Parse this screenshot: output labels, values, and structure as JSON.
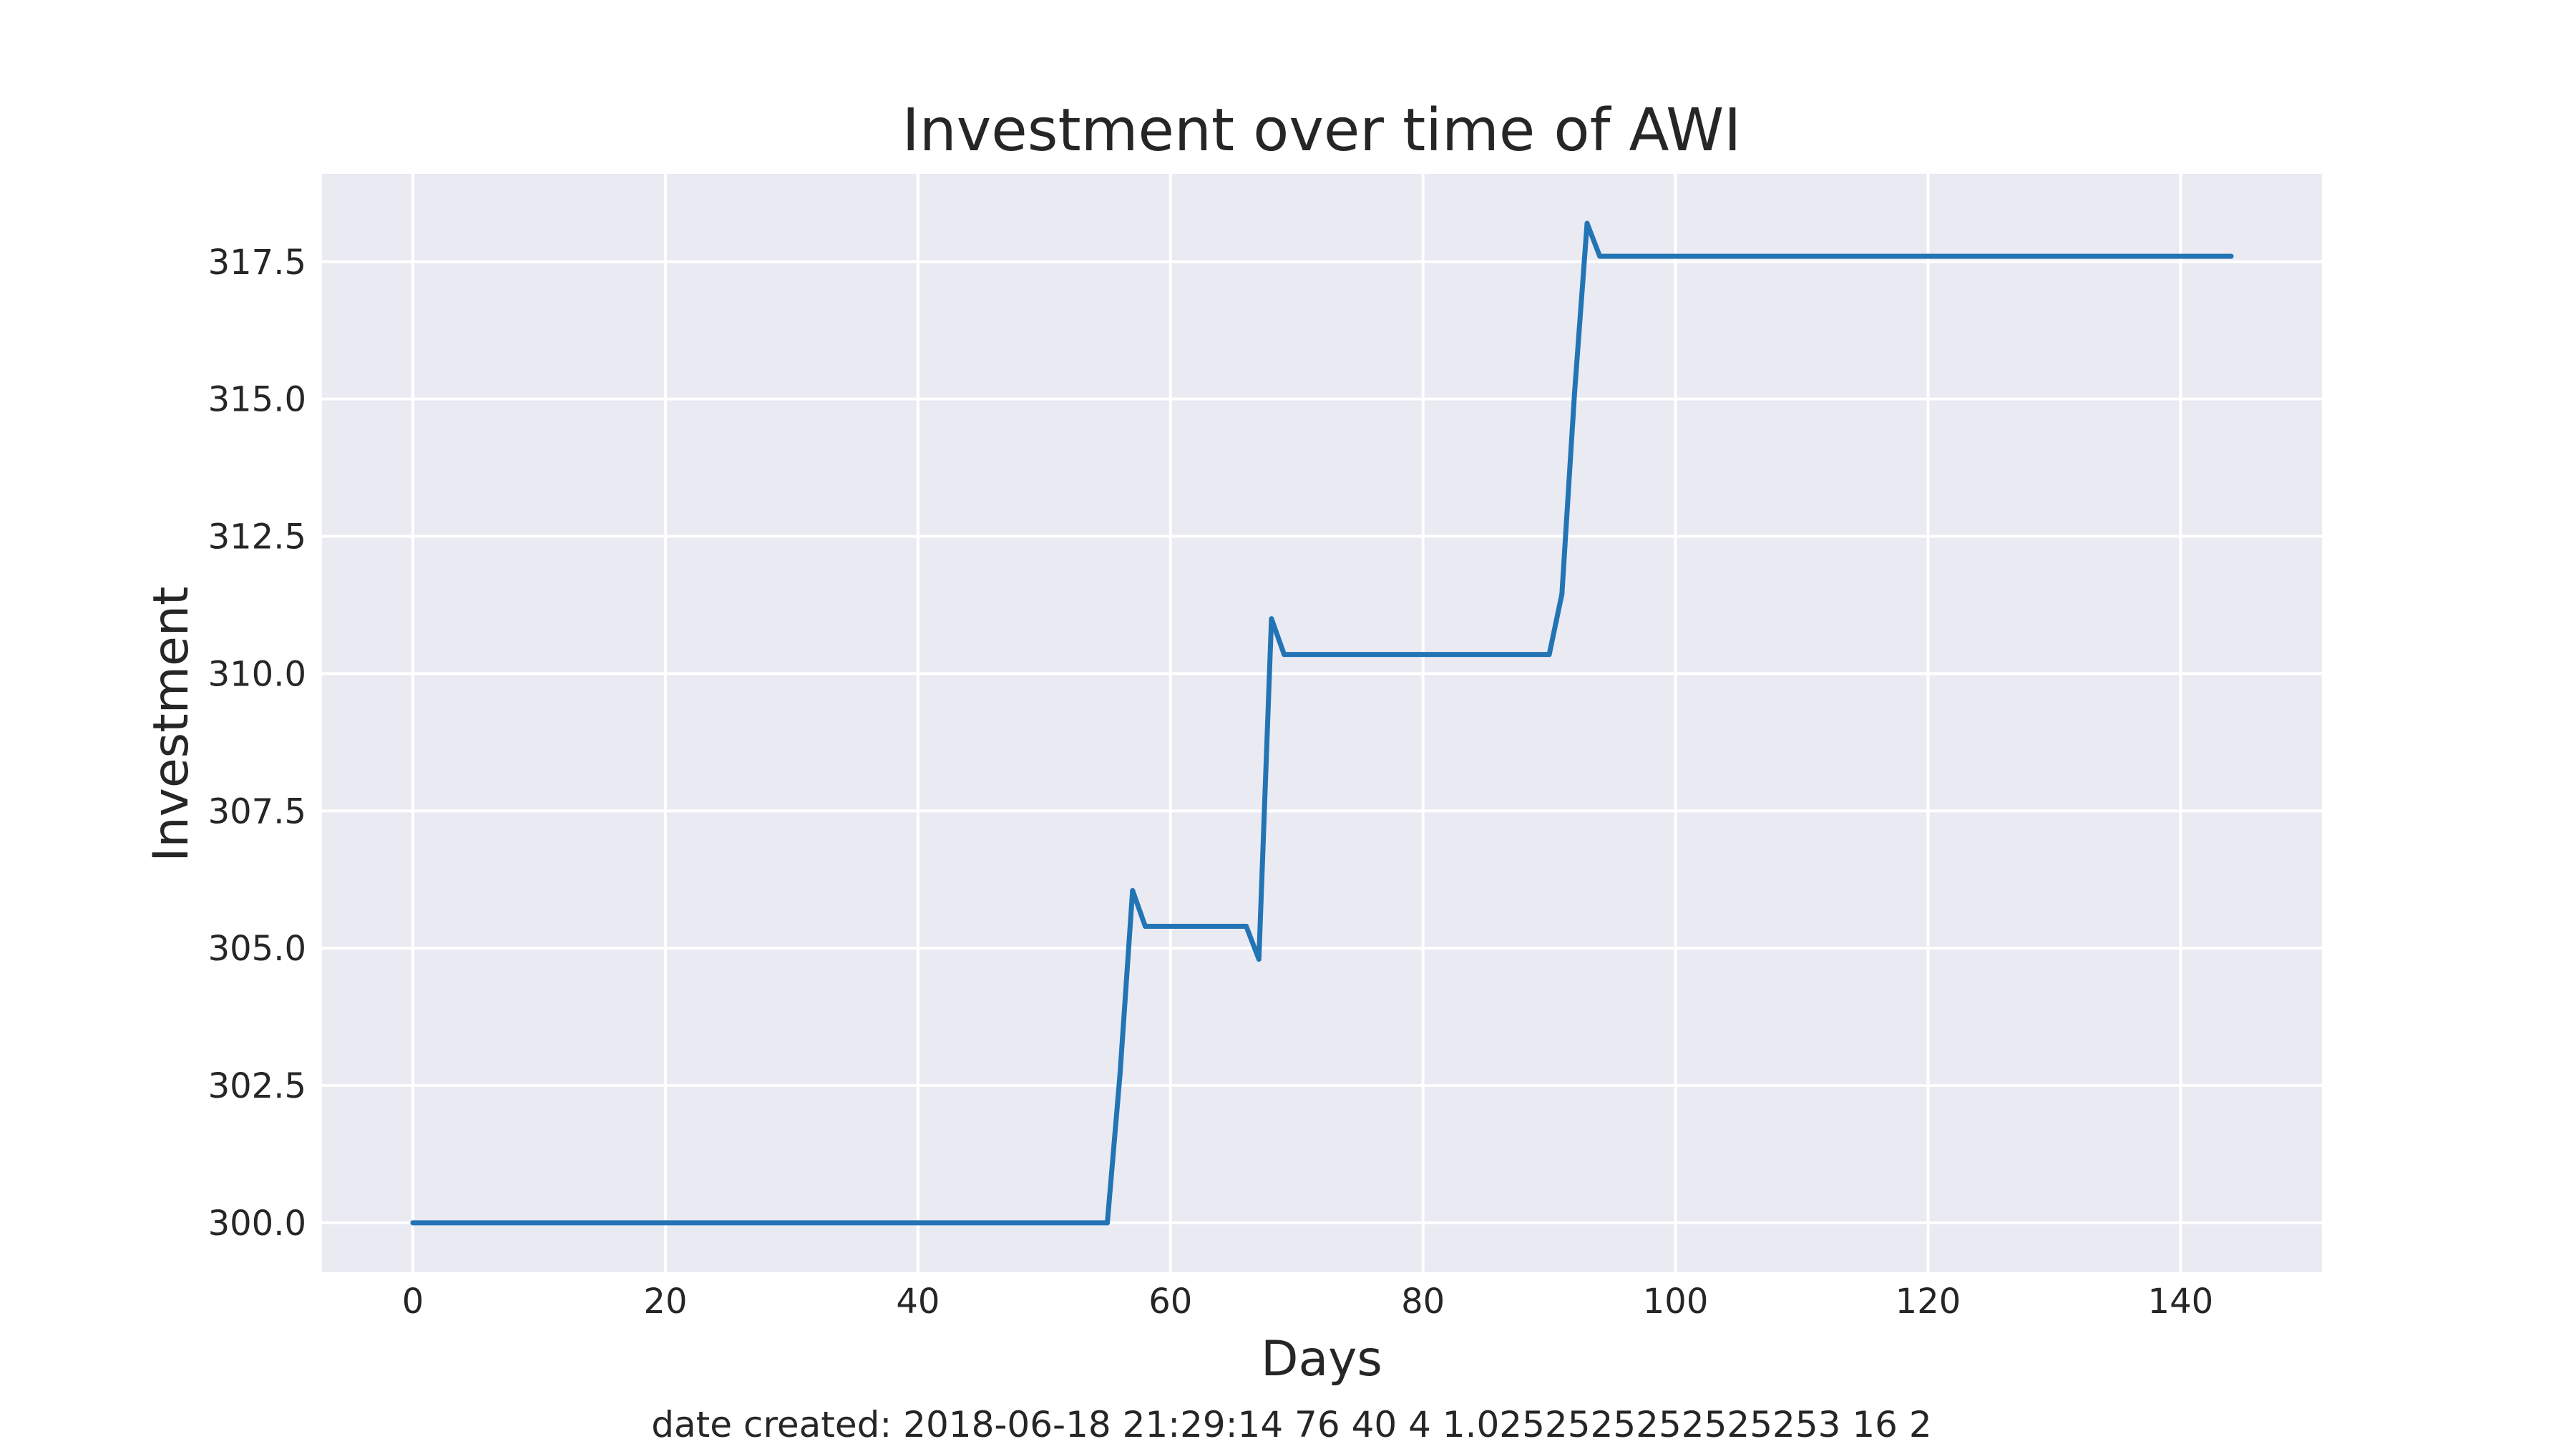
{
  "chart_data": {
    "type": "line",
    "title": "Investment over time of AWI",
    "xlabel": "Days",
    "ylabel": "Investment",
    "xlim": [
      -7.2,
      151.2
    ],
    "ylim": [
      299.1,
      319.1
    ],
    "xticks": [
      0,
      20,
      40,
      60,
      80,
      100,
      120,
      140
    ],
    "xtick_labels": [
      "0",
      "20",
      "40",
      "60",
      "80",
      "100",
      "120",
      "140"
    ],
    "yticks": [
      300.0,
      302.5,
      305.0,
      307.5,
      310.0,
      312.5,
      315.0,
      317.5
    ],
    "ytick_labels": [
      "300.0",
      "302.5",
      "305.0",
      "307.5",
      "310.0",
      "312.5",
      "315.0",
      "317.5"
    ],
    "grid": true,
    "background": "#eaeaf2",
    "grid_color": "#ffffff",
    "line_color": "#2374b5",
    "series": [
      {
        "x": [
          0,
          55,
          56,
          57,
          58,
          66,
          67,
          68,
          69,
          90,
          91,
          92,
          93,
          94,
          144
        ],
        "y": [
          300.0,
          300.0,
          302.7,
          306.05,
          305.4,
          305.4,
          304.8,
          311.0,
          310.35,
          310.35,
          311.45,
          315.1,
          318.2,
          317.6,
          317.6
        ]
      }
    ]
  },
  "caption": "date created: 2018-06-18 21:29:14 76 40 4 1.0252525252525253 16 2"
}
